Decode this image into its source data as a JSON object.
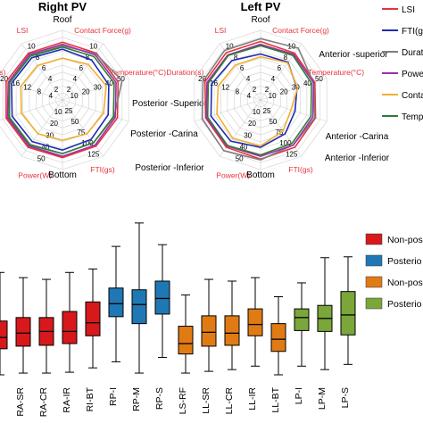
{
  "chart_data": [
    {
      "type": "radar",
      "title": "Right PV",
      "region_labels": [
        "Roof",
        "Posterior -Superior",
        "Posterior -Carina",
        "Posterior -Inferior",
        "Bottom"
      ],
      "axes": [
        {
          "name": "Contact Force(g)",
          "ticks": [
            "2",
            "4",
            "6",
            "8",
            "10"
          ]
        },
        {
          "name": "Temperature(°C)",
          "ticks": [
            "10",
            "20",
            "30",
            "40",
            "50"
          ]
        },
        {
          "name": "FTI(gs)",
          "ticks": [
            "25",
            "50",
            "75",
            "100",
            "125"
          ]
        },
        {
          "name": "Power(W)",
          "ticks": [
            "10",
            "20",
            "30",
            "40",
            "50"
          ]
        },
        {
          "name": "Duration(s)",
          "ticks": [
            "4",
            "8",
            "12",
            "16",
            "20"
          ]
        },
        {
          "name": "LSI",
          "ticks": [
            "2",
            "4",
            "6",
            "8",
            "10"
          ]
        }
      ],
      "series": [
        {
          "name": "LSI",
          "color": "#e8323c",
          "values": [
            0.83,
            0.83,
            0.84,
            0.83,
            0.82,
            0.83,
            0.84,
            0.85,
            0.85,
            0.83
          ]
        },
        {
          "name": "FTI(gs)",
          "color": "#1f2bb5",
          "values": [
            0.73,
            0.71,
            0.7,
            0.69,
            0.7,
            0.72,
            0.74,
            0.76,
            0.77,
            0.75
          ]
        },
        {
          "name": "Duration(s)",
          "color": "#7f7f7f",
          "values": [
            0.78,
            0.82,
            0.9,
            0.78,
            0.76,
            0.77,
            0.79,
            0.8,
            0.8,
            0.79
          ]
        },
        {
          "name": "Power(W)",
          "color": "#9b2fae",
          "values": [
            0.8,
            0.8,
            0.81,
            0.8,
            0.8,
            0.81,
            0.82,
            0.83,
            0.82,
            0.81
          ]
        },
        {
          "name": "Contact Force(g)",
          "color": "#f0b030",
          "values": [
            0.6,
            0.63,
            0.66,
            0.62,
            0.6,
            0.58,
            0.6,
            0.62,
            0.63,
            0.61
          ]
        },
        {
          "name": "Temperature(°C)",
          "color": "#2e7d32",
          "values": [
            0.76,
            0.77,
            0.78,
            0.77,
            0.76,
            0.77,
            0.8,
            0.81,
            0.8,
            0.78
          ]
        }
      ]
    },
    {
      "type": "radar",
      "title": "Left PV",
      "region_labels": [
        "Roof",
        "Anterior -superior",
        "Anterior -Carina",
        "Anterior -Inferior",
        "Bottom"
      ],
      "axes": [
        {
          "name": "Contact Force(g)",
          "ticks": [
            "2",
            "4",
            "6",
            "8",
            "10"
          ]
        },
        {
          "name": "Temperature(°C)",
          "ticks": [
            "10",
            "20",
            "30",
            "40",
            "50"
          ]
        },
        {
          "name": "FTI(gs)",
          "ticks": [
            "25",
            "50",
            "75",
            "100",
            "125"
          ]
        },
        {
          "name": "Power(W)",
          "ticks": [
            "10",
            "20",
            "30",
            "40",
            "50"
          ]
        },
        {
          "name": "Duration(s)",
          "ticks": [
            "4",
            "8",
            "12",
            "16",
            "20"
          ]
        },
        {
          "name": "LSI",
          "ticks": [
            "2",
            "4",
            "6",
            "8",
            "10"
          ]
        }
      ],
      "series": [
        {
          "name": "LSI",
          "color": "#e8323c",
          "values": [
            0.84,
            0.83,
            0.82,
            0.83,
            0.84,
            0.85,
            0.84,
            0.83,
            0.84,
            0.84
          ]
        },
        {
          "name": "FTI(gs)",
          "color": "#1f2bb5",
          "values": [
            0.66,
            0.67,
            0.55,
            0.52,
            0.6,
            0.68,
            0.73,
            0.75,
            0.74,
            0.7
          ]
        },
        {
          "name": "Duration(s)",
          "color": "#7f7f7f",
          "values": [
            0.88,
            0.92,
            0.8,
            0.82,
            0.8,
            0.86,
            0.9,
            0.88,
            0.87,
            0.88
          ]
        },
        {
          "name": "Power(W)",
          "color": "#9b2fae",
          "values": [
            0.8,
            0.81,
            0.8,
            0.79,
            0.8,
            0.81,
            0.82,
            0.82,
            0.81,
            0.8
          ]
        },
        {
          "name": "Contact Force(g)",
          "color": "#f0b030",
          "values": [
            0.62,
            0.66,
            0.56,
            0.46,
            0.55,
            0.66,
            0.68,
            0.66,
            0.64,
            0.62
          ]
        },
        {
          "name": "Temperature(°C)",
          "color": "#2e7d32",
          "values": [
            0.78,
            0.79,
            0.77,
            0.76,
            0.77,
            0.79,
            0.81,
            0.8,
            0.79,
            0.79
          ]
        }
      ]
    },
    {
      "type": "box",
      "categories": [
        "RS-RF",
        "RA-SR",
        "RA-CR",
        "RA-IR",
        "RI-BT",
        "RP-I",
        "RP-M",
        "RP-S",
        "LS-RF",
        "LL-SR",
        "LL-CR",
        "LL-IR",
        "LL-BT",
        "LP-I",
        "LP-M",
        "LP-S"
      ],
      "category_labels": [
        "RS-RF",
        "RA-SR",
        "RA-CR",
        "RA-IR",
        "RI-BT",
        "RP-I",
        "RP-M",
        "RP-S",
        "LS-RF",
        "LL-SR",
        "LL-CR",
        "LL-IR",
        "LL-BT",
        "LP-I",
        "LP-M",
        "LP-S"
      ],
      "groups": [
        {
          "name": "Non-pos",
          "color": "#d7191c",
          "members": [
            0,
            1,
            2,
            3,
            4
          ]
        },
        {
          "name": "Posterio",
          "color": "#1f78b4",
          "members": [
            5,
            6,
            7
          ]
        },
        {
          "name": "Non-pos",
          "color": "#e07b14",
          "members": [
            8,
            9,
            10,
            11,
            12
          ]
        },
        {
          "name": "Posterio",
          "color": "#7aa63a",
          "members": [
            13,
            14,
            15
          ]
        }
      ],
      "boxes": [
        {
          "min": 0.0,
          "q1": 3.0,
          "median": 4.3,
          "q3": 6.2,
          "max": 11.8
        },
        {
          "min": 0.2,
          "q1": 3.3,
          "median": 4.8,
          "q3": 6.6,
          "max": 11.2
        },
        {
          "min": 0.2,
          "q1": 3.4,
          "median": 5.0,
          "q3": 6.6,
          "max": 11.0
        },
        {
          "min": 0.3,
          "q1": 3.6,
          "median": 5.0,
          "q3": 7.3,
          "max": 11.8
        },
        {
          "min": 0.8,
          "q1": 4.5,
          "median": 6.0,
          "q3": 8.4,
          "max": 12.2
        },
        {
          "min": 1.5,
          "q1": 6.7,
          "median": 8.2,
          "q3": 10.0,
          "max": 14.8
        },
        {
          "min": 0.2,
          "q1": 5.9,
          "median": 8.1,
          "q3": 9.8,
          "max": 17.5
        },
        {
          "min": 2.0,
          "q1": 7.0,
          "median": 8.8,
          "q3": 10.8,
          "max": 15.0
        },
        {
          "min": 0.2,
          "q1": 2.4,
          "median": 3.6,
          "q3": 5.6,
          "max": 9.2
        },
        {
          "min": 0.4,
          "q1": 3.3,
          "median": 4.9,
          "q3": 6.8,
          "max": 11.0
        },
        {
          "min": 0.6,
          "q1": 3.4,
          "median": 4.8,
          "q3": 6.8,
          "max": 10.8
        },
        {
          "min": 1.0,
          "q1": 4.5,
          "median": 5.8,
          "q3": 7.6,
          "max": 11.2
        },
        {
          "min": 0.0,
          "q1": 2.7,
          "median": 4.1,
          "q3": 5.9,
          "max": 9.0
        },
        {
          "min": 1.0,
          "q1": 5.1,
          "median": 6.6,
          "q3": 7.6,
          "max": 10.6
        },
        {
          "min": 0.6,
          "q1": 5.0,
          "median": 6.5,
          "q3": 8.0,
          "max": 13.5
        },
        {
          "min": 1.2,
          "q1": 4.6,
          "median": 6.9,
          "q3": 9.6,
          "max": 13.6
        }
      ],
      "legend_labels": [
        "Non-pos",
        "Posterio",
        "Non-pos",
        "Posterio"
      ],
      "ylim": [
        0,
        18
      ]
    }
  ]
}
